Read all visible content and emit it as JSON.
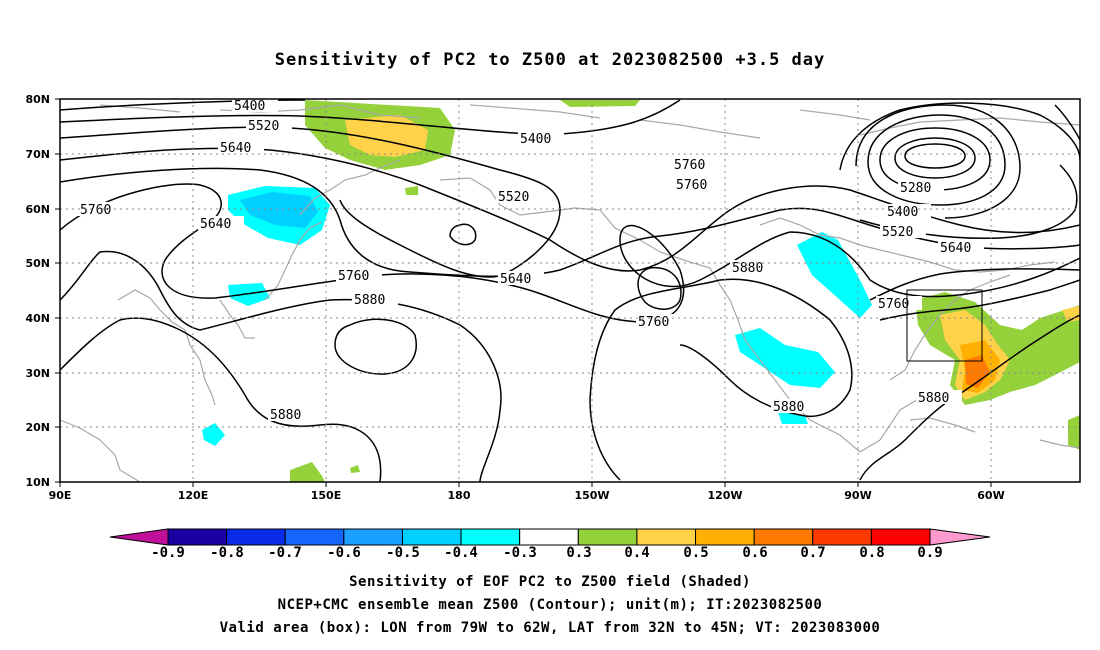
{
  "title": "Sensitivity of PC2 to Z500 at 2023082500 +3.5 day",
  "lat_ticks": [
    "80N",
    "70N",
    "60N",
    "50N",
    "40N",
    "30N",
    "20N",
    "10N"
  ],
  "lon_ticks": [
    "90E",
    "120E",
    "150E",
    "180",
    "150W",
    "120W",
    "90W",
    "60W"
  ],
  "contour_labels": [
    "5400",
    "5520",
    "5640",
    "5760",
    "5400",
    "5640",
    "5760",
    "5520",
    "5280",
    "5400",
    "5520",
    "5640",
    "5760",
    "5640",
    "5880",
    "5760",
    "5880",
    "5760",
    "5880",
    "5880",
    "5880"
  ],
  "colorbar": {
    "labels": [
      "-0.9",
      "-0.8",
      "-0.7",
      "-0.6",
      "-0.5",
      "-0.4",
      "-0.3",
      "0.3",
      "0.4",
      "0.5",
      "0.6",
      "0.7",
      "0.8",
      "0.9"
    ],
    "colors": [
      "#1a00a0",
      "#0a2ce8",
      "#1466ff",
      "#1aa0ff",
      "#00cfff",
      "#00ffff",
      "#ffffff",
      "#95d13b",
      "#ffd24a",
      "#ffb000",
      "#ff7a00",
      "#ff3a00",
      "#ff0000"
    ],
    "low_end_color": "#c0109a",
    "high_end_color": "#ff9ad0"
  },
  "caption": {
    "line1": "Sensitivity of EOF PC2 to Z500 field (Shaded)",
    "line2": "NCEP+CMC ensemble mean Z500 (Contour); unit(m); IT:2023082500",
    "line3": "Valid area (box): LON from 79W to 62W, LAT from 32N to 45N; VT: 2023083000"
  }
}
